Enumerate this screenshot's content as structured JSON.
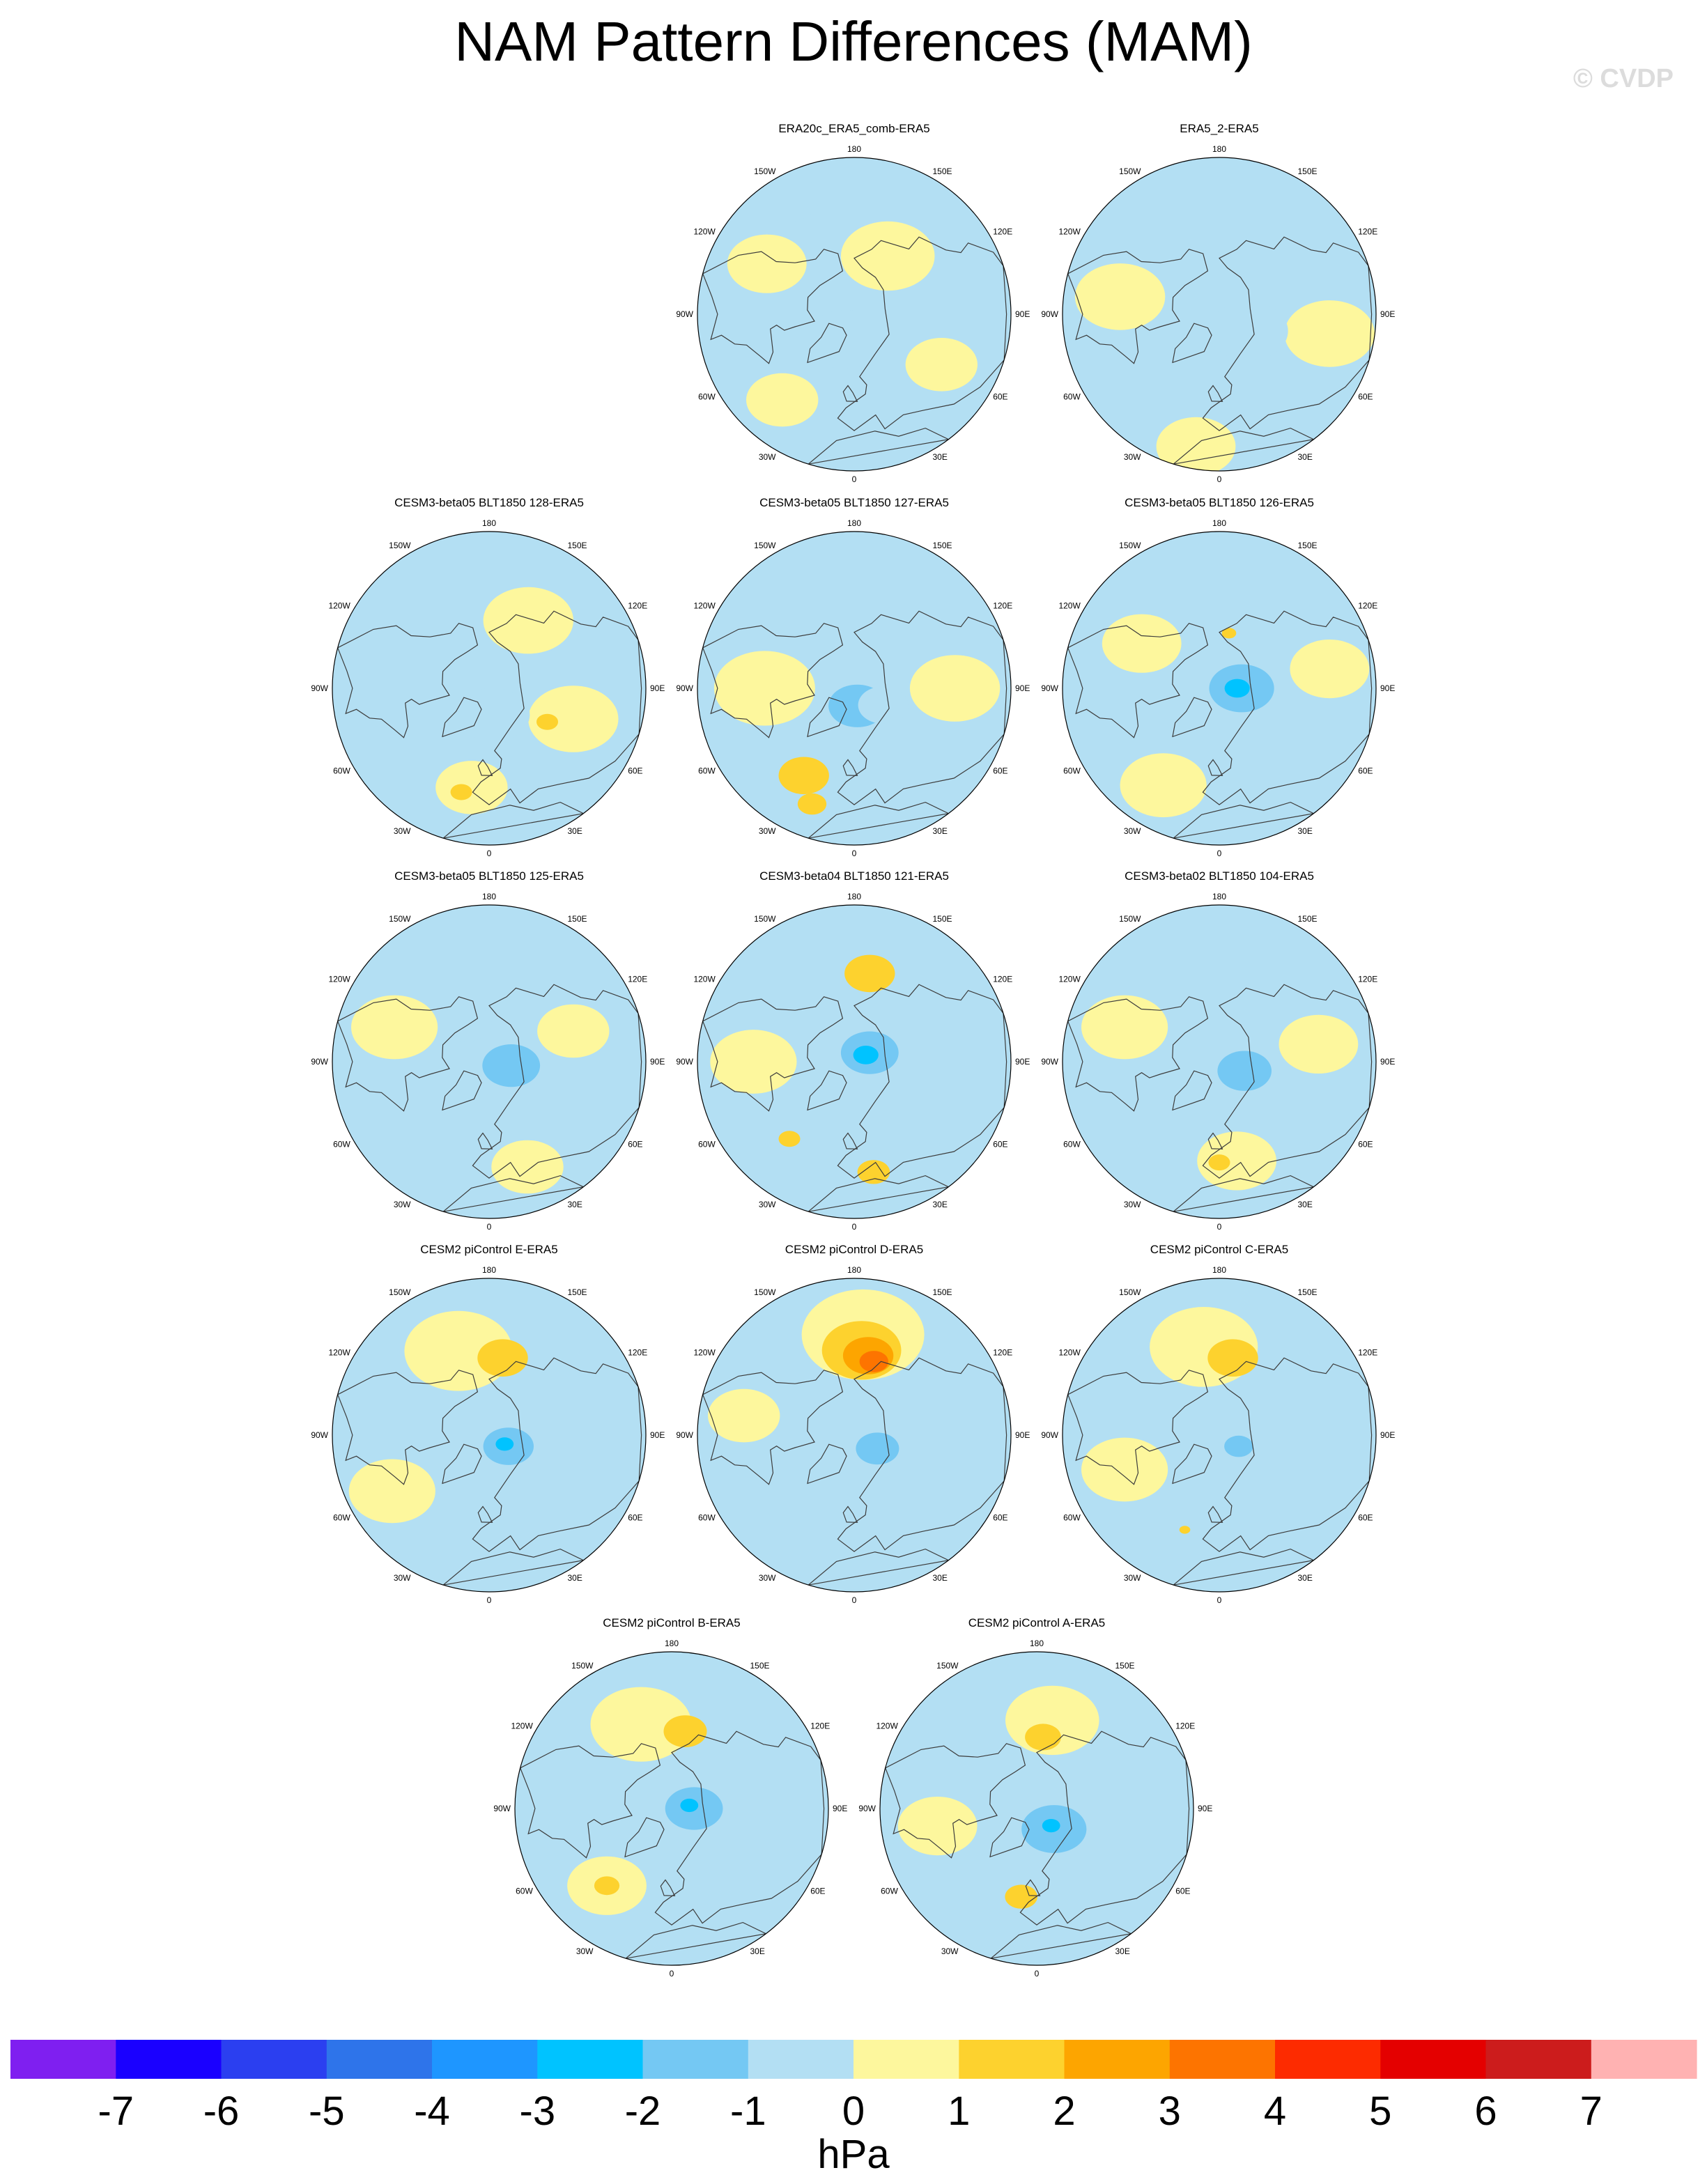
{
  "title": "NAM Pattern Differences (MAM)",
  "watermark": "© CVDP",
  "lon_labels": [
    "180",
    "150E",
    "120E",
    "90E",
    "60E",
    "30E",
    "0",
    "30W",
    "60W",
    "90W",
    "120W",
    "150W"
  ],
  "chart_data": {
    "type": "heatmap",
    "projection": "north-polar-stereographic",
    "field": "NAM pattern difference (sea level pressure)",
    "units": "hPa",
    "colorbar": {
      "ticks": [
        -7,
        -6,
        -5,
        -4,
        -3,
        -2,
        -1,
        0,
        1,
        2,
        3,
        4,
        5,
        6,
        7
      ],
      "colors": [
        "#7f1ff0",
        "#1a00ff",
        "#2b3ff0",
        "#2e74ea",
        "#1e96ff",
        "#00c3ff",
        "#74c8f3",
        "#b3dff3",
        "#fdf79d",
        "#fdd22e",
        "#fda500",
        "#fd7400",
        "#fd2b00",
        "#e40000",
        "#cc1c1c",
        "#ffb2b2"
      ],
      "label": "hPa"
    },
    "panels": [
      {
        "name": "ERA20c_ERA5_comb-ERA5",
        "features": [
          {
            "lat": 60,
            "lon": 150,
            "value": 0.5,
            "r": 0.26
          },
          {
            "lat": 45,
            "lon": -120,
            "value": 0.5,
            "r": 0.22
          },
          {
            "lat": 40,
            "lon": -40,
            "value": 0.5,
            "r": 0.2
          },
          {
            "lat": 45,
            "lon": 60,
            "value": 0.5,
            "r": 0.2
          },
          {
            "lat": 78,
            "lon": -20,
            "value": -0.5,
            "r": 0.22
          },
          {
            "lat": 30,
            "lon": -150,
            "value": -0.5,
            "r": 0.18
          }
        ]
      },
      {
        "name": "ERA5_2-ERA5",
        "features": [
          {
            "lat": 45,
            "lon": -100,
            "value": 0.5,
            "r": 0.25
          },
          {
            "lat": 40,
            "lon": 80,
            "value": 0.5,
            "r": 0.25
          },
          {
            "lat": 30,
            "lon": -10,
            "value": 0.5,
            "r": 0.22
          },
          {
            "lat": 75,
            "lon": 60,
            "value": -0.5,
            "r": 0.22
          }
        ]
      },
      {
        "name": "CESM3-beta05 BLT1850 128-ERA5",
        "features": [
          {
            "lat": 55,
            "lon": 150,
            "value": 0.5,
            "r": 0.25
          },
          {
            "lat": 50,
            "lon": 70,
            "value": 0.5,
            "r": 0.25
          },
          {
            "lat": 45,
            "lon": -10,
            "value": 0.5,
            "r": 0.2
          },
          {
            "lat": 60,
            "lon": 60,
            "value": 1.2,
            "r": 0.06
          },
          {
            "lat": 42,
            "lon": -15,
            "value": 1.2,
            "r": 0.06
          },
          {
            "lat": 78,
            "lon": 10,
            "value": -0.5,
            "r": 0.2
          }
        ]
      },
      {
        "name": "CESM3-beta05 BLT1850 127-ERA5",
        "features": [
          {
            "lat": 50,
            "lon": -90,
            "value": 0.5,
            "r": 0.28
          },
          {
            "lat": 45,
            "lon": 90,
            "value": 0.5,
            "r": 0.25
          },
          {
            "lat": 45,
            "lon": -30,
            "value": 1.2,
            "r": 0.14
          },
          {
            "lat": 35,
            "lon": -20,
            "value": 1.2,
            "r": 0.08
          },
          {
            "lat": 82,
            "lon": 10,
            "value": -1.5,
            "r": 0.16
          },
          {
            "lat": 75,
            "lon": 60,
            "value": -0.5,
            "r": 0.14
          }
        ]
      },
      {
        "name": "CESM3-beta05 BLT1850 126-ERA5",
        "features": [
          {
            "lat": 50,
            "lon": -120,
            "value": 0.5,
            "r": 0.22
          },
          {
            "lat": 40,
            "lon": -30,
            "value": 0.5,
            "r": 0.24
          },
          {
            "lat": 40,
            "lon": 100,
            "value": 0.5,
            "r": 0.22
          },
          {
            "lat": 65,
            "lon": 170,
            "value": 1.2,
            "r": 0.04
          },
          {
            "lat": 80,
            "lon": 90,
            "value": -1.5,
            "r": 0.18
          },
          {
            "lat": 82,
            "lon": 90,
            "value": -2.5,
            "r": 0.07
          }
        ]
      },
      {
        "name": "CESM3-beta05 BLT1850 125-ERA5",
        "features": [
          {
            "lat": 45,
            "lon": -110,
            "value": 0.5,
            "r": 0.24
          },
          {
            "lat": 40,
            "lon": 20,
            "value": 0.5,
            "r": 0.2
          },
          {
            "lat": 50,
            "lon": 110,
            "value": 0.5,
            "r": 0.2
          },
          {
            "lat": 80,
            "lon": 80,
            "value": -1.5,
            "r": 0.16
          },
          {
            "lat": 70,
            "lon": -150,
            "value": -0.5,
            "r": 0.14
          }
        ]
      },
      {
        "name": "CESM3-beta04 BLT1850 121-ERA5",
        "features": [
          {
            "lat": 50,
            "lon": 170,
            "value": 1.2,
            "r": 0.14
          },
          {
            "lat": 45,
            "lon": -90,
            "value": 0.5,
            "r": 0.24
          },
          {
            "lat": 40,
            "lon": 10,
            "value": 1.2,
            "r": 0.09
          },
          {
            "lat": 45,
            "lon": -40,
            "value": 1.2,
            "r": 0.06
          },
          {
            "lat": 82,
            "lon": 120,
            "value": -1.5,
            "r": 0.16
          },
          {
            "lat": 84,
            "lon": 120,
            "value": -2.5,
            "r": 0.07
          }
        ]
      },
      {
        "name": "CESM3-beta02 BLT1850 104-ERA5",
        "features": [
          {
            "lat": 45,
            "lon": -110,
            "value": 0.5,
            "r": 0.24
          },
          {
            "lat": 45,
            "lon": 10,
            "value": 0.5,
            "r": 0.22
          },
          {
            "lat": 45,
            "lon": 100,
            "value": 0.5,
            "r": 0.22
          },
          {
            "lat": 45,
            "lon": 0,
            "value": 1.2,
            "r": 0.06
          },
          {
            "lat": 78,
            "lon": 70,
            "value": -1.5,
            "r": 0.15
          }
        ]
      },
      {
        "name": "CESM2 piControl E-ERA5",
        "features": [
          {
            "lat": 50,
            "lon": -160,
            "value": 0.5,
            "r": 0.3
          },
          {
            "lat": 55,
            "lon": 170,
            "value": 1.2,
            "r": 0.14
          },
          {
            "lat": 40,
            "lon": -60,
            "value": 0.5,
            "r": 0.24
          },
          {
            "lat": 80,
            "lon": 60,
            "value": -1.5,
            "r": 0.14
          },
          {
            "lat": 82,
            "lon": 60,
            "value": -2.5,
            "r": 0.05
          }
        ]
      },
      {
        "name": "CESM2 piControl D-ERA5",
        "features": [
          {
            "lat": 45,
            "lon": 175,
            "value": 0.5,
            "r": 0.34
          },
          {
            "lat": 52,
            "lon": 175,
            "value": 1.2,
            "r": 0.22
          },
          {
            "lat": 54,
            "lon": 170,
            "value": 2.5,
            "r": 0.14
          },
          {
            "lat": 56,
            "lon": 165,
            "value": 3.5,
            "r": 0.08
          },
          {
            "lat": 40,
            "lon": -100,
            "value": 0.5,
            "r": 0.2
          },
          {
            "lat": 78,
            "lon": 60,
            "value": -1.5,
            "r": 0.12
          }
        ]
      },
      {
        "name": "CESM2 piControl C-ERA5",
        "features": [
          {
            "lat": 50,
            "lon": -170,
            "value": 0.5,
            "r": 0.3
          },
          {
            "lat": 55,
            "lon": 170,
            "value": 1.2,
            "r": 0.14
          },
          {
            "lat": 45,
            "lon": -70,
            "value": 0.5,
            "r": 0.24
          },
          {
            "lat": 45,
            "lon": -20,
            "value": 1.2,
            "r": 0.03
          },
          {
            "lat": 80,
            "lon": 60,
            "value": -1.5,
            "r": 0.08
          }
        ]
      },
      {
        "name": "CESM2 piControl B-ERA5",
        "features": [
          {
            "lat": 50,
            "lon": -160,
            "value": 0.5,
            "r": 0.28
          },
          {
            "lat": 55,
            "lon": 170,
            "value": 1.2,
            "r": 0.12
          },
          {
            "lat": 45,
            "lon": -40,
            "value": 0.5,
            "r": 0.22
          },
          {
            "lat": 45,
            "lon": -40,
            "value": 1.2,
            "r": 0.07
          },
          {
            "lat": 80,
            "lon": 90,
            "value": -1.5,
            "r": 0.16
          },
          {
            "lat": 82,
            "lon": 100,
            "value": -2.5,
            "r": 0.05
          }
        ]
      },
      {
        "name": "CESM2 piControl A-ERA5",
        "features": [
          {
            "lat": 50,
            "lon": 170,
            "value": 0.5,
            "r": 0.26
          },
          {
            "lat": 58,
            "lon": 175,
            "value": 1.2,
            "r": 0.1
          },
          {
            "lat": 45,
            "lon": -80,
            "value": 0.5,
            "r": 0.22
          },
          {
            "lat": 50,
            "lon": -10,
            "value": 1.2,
            "r": 0.09
          },
          {
            "lat": 78,
            "lon": 40,
            "value": -1.5,
            "r": 0.18
          },
          {
            "lat": 80,
            "lon": 40,
            "value": -2.5,
            "r": 0.05
          }
        ]
      }
    ]
  }
}
